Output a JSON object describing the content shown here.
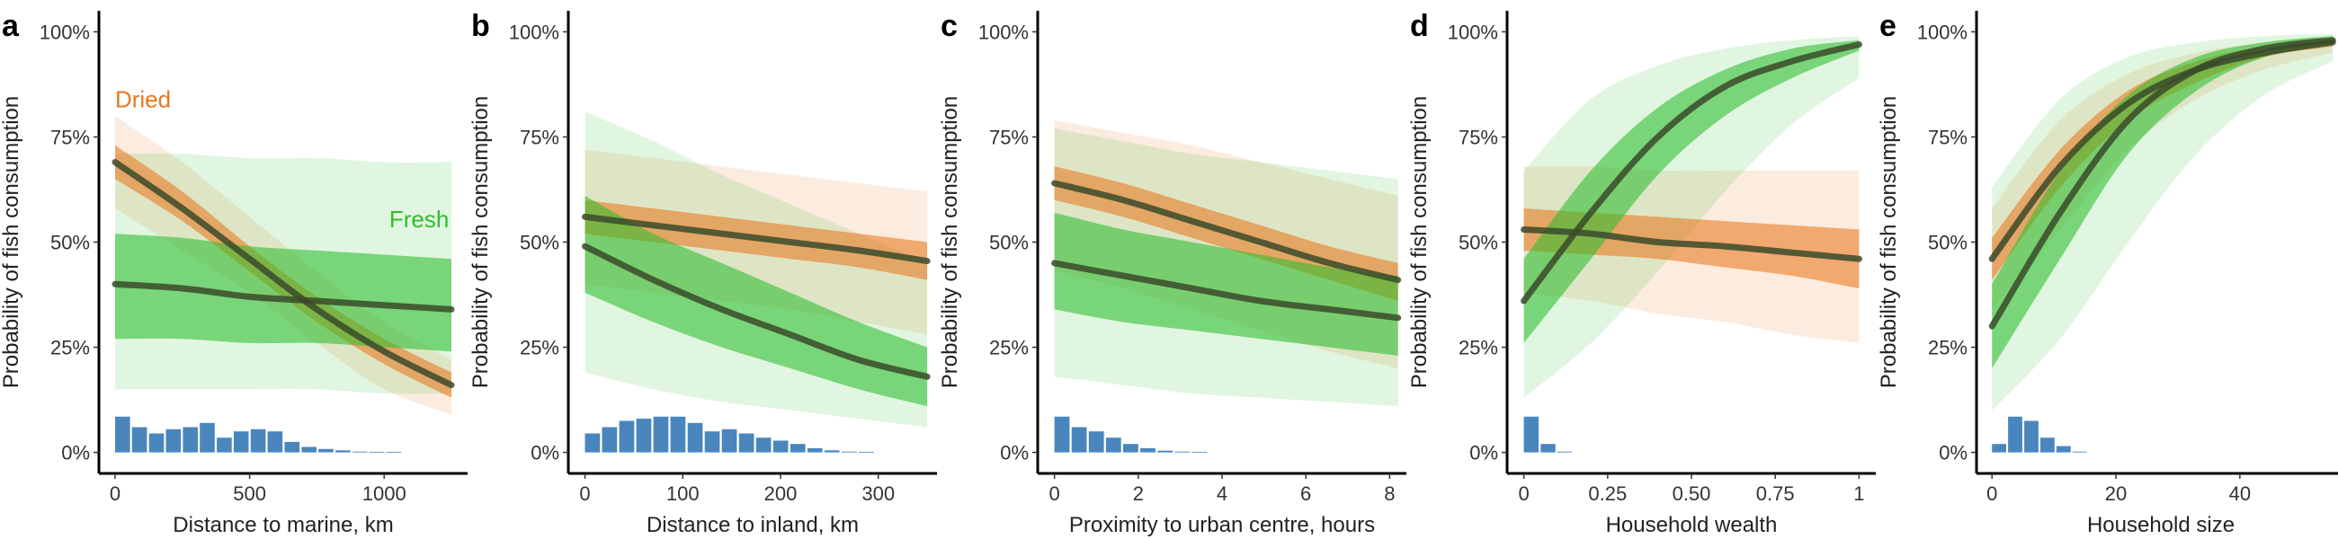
{
  "figure": {
    "colors": {
      "dried": "#E8781E",
      "fresh": "#2EBE2E",
      "curve": "#3a4a2a",
      "histogram": "#4A86BE"
    },
    "y_tick_labels": [
      "0%",
      "25%",
      "50%",
      "75%",
      "100%"
    ]
  },
  "chart_data": [
    {
      "type": "line",
      "panel": "a",
      "xlabel": "Distance to marine, km",
      "ylabel": "Probability of fish consumption",
      "xlim": [
        -60,
        1310
      ],
      "ylim": [
        -0.05,
        1.05
      ],
      "xticks": [
        0,
        500,
        1000
      ],
      "xtick_labels": [
        "0",
        "500",
        "1000"
      ],
      "annotations": [
        {
          "text": "Dried",
          "series": "dried",
          "x": 0,
          "y": 0.82
        },
        {
          "text": "Fresh",
          "series": "fresh",
          "x": 1130,
          "y": 0.535
        }
      ],
      "histogram": {
        "bin_width": 63,
        "start": 0,
        "values": [
          0.085,
          0.06,
          0.045,
          0.055,
          0.06,
          0.07,
          0.035,
          0.05,
          0.055,
          0.05,
          0.025,
          0.013,
          0.008,
          0.005,
          0.002,
          0.001,
          0.001,
          0.0,
          0.0,
          0.0
        ]
      },
      "series": [
        {
          "name": "Dried",
          "x": [
            0,
            250,
            500,
            750,
            1000,
            1250
          ],
          "y": [
            0.69,
            0.58,
            0.46,
            0.34,
            0.24,
            0.16
          ],
          "ci_lower": [
            0.65,
            0.55,
            0.43,
            0.31,
            0.21,
            0.13
          ],
          "ci_upper": [
            0.73,
            0.62,
            0.49,
            0.37,
            0.27,
            0.19
          ],
          "pi_lower": [
            0.58,
            0.48,
            0.38,
            0.26,
            0.15,
            0.09
          ],
          "pi_upper": [
            0.8,
            0.69,
            0.56,
            0.43,
            0.31,
            0.22
          ]
        },
        {
          "name": "Fresh",
          "x": [
            0,
            250,
            500,
            750,
            1000,
            1250
          ],
          "y": [
            0.4,
            0.39,
            0.37,
            0.36,
            0.35,
            0.34
          ],
          "ci_lower": [
            0.27,
            0.27,
            0.26,
            0.26,
            0.25,
            0.24
          ],
          "ci_upper": [
            0.52,
            0.51,
            0.49,
            0.48,
            0.47,
            0.46
          ],
          "pi_lower": [
            0.15,
            0.15,
            0.15,
            0.15,
            0.14,
            0.14
          ],
          "pi_upper": [
            0.71,
            0.71,
            0.7,
            0.7,
            0.69,
            0.69
          ]
        }
      ]
    },
    {
      "type": "line",
      "panel": "b",
      "xlabel": "Distance to inland, km",
      "ylabel": "Probability of fish consumption",
      "xlim": [
        -17,
        360
      ],
      "ylim": [
        -0.05,
        1.05
      ],
      "xticks": [
        0,
        100,
        200,
        300
      ],
      "xtick_labels": [
        "0",
        "100",
        "200",
        "300"
      ],
      "annotations": [],
      "histogram": {
        "bin_width": 17.5,
        "start": 0,
        "values": [
          0.045,
          0.06,
          0.075,
          0.08,
          0.085,
          0.085,
          0.07,
          0.05,
          0.055,
          0.045,
          0.035,
          0.028,
          0.02,
          0.01,
          0.005,
          0.002,
          0.001,
          0.0,
          0.0,
          0.0
        ]
      },
      "series": [
        {
          "name": "Dried",
          "x": [
            0,
            70,
            140,
            210,
            280,
            350
          ],
          "y": [
            0.56,
            0.54,
            0.52,
            0.5,
            0.48,
            0.455
          ],
          "ci_lower": [
            0.52,
            0.5,
            0.48,
            0.46,
            0.44,
            0.41
          ],
          "ci_upper": [
            0.6,
            0.58,
            0.56,
            0.54,
            0.52,
            0.5
          ],
          "pi_lower": [
            0.4,
            0.38,
            0.36,
            0.34,
            0.31,
            0.28
          ],
          "pi_upper": [
            0.72,
            0.7,
            0.68,
            0.66,
            0.64,
            0.62
          ]
        },
        {
          "name": "Fresh",
          "x": [
            0,
            70,
            140,
            210,
            280,
            350
          ],
          "y": [
            0.49,
            0.41,
            0.34,
            0.28,
            0.22,
            0.18
          ],
          "ci_lower": [
            0.38,
            0.31,
            0.25,
            0.2,
            0.15,
            0.11
          ],
          "ci_upper": [
            0.61,
            0.52,
            0.45,
            0.38,
            0.31,
            0.25
          ],
          "pi_lower": [
            0.19,
            0.15,
            0.12,
            0.1,
            0.08,
            0.06
          ],
          "pi_upper": [
            0.81,
            0.74,
            0.66,
            0.59,
            0.52,
            0.45
          ]
        }
      ]
    },
    {
      "type": "line",
      "panel": "c",
      "xlabel": "Proximity to urban centre, hours",
      "ylabel": "Probability of fish consumption",
      "xlim": [
        -0.4,
        8.4
      ],
      "ylim": [
        -0.05,
        1.05
      ],
      "xticks": [
        0,
        2,
        4,
        6,
        8
      ],
      "xtick_labels": [
        "0",
        "2",
        "4",
        "6",
        "8"
      ],
      "annotations": [],
      "histogram": {
        "bin_width": 0.41,
        "start": 0,
        "values": [
          0.085,
          0.06,
          0.05,
          0.035,
          0.02,
          0.01,
          0.004,
          0.002,
          0.001,
          0.0
        ]
      },
      "series": [
        {
          "name": "Dried",
          "x": [
            0,
            1.64,
            3.28,
            4.92,
            6.56,
            8.2
          ],
          "y": [
            0.64,
            0.6,
            0.55,
            0.5,
            0.45,
            0.41
          ],
          "ci_lower": [
            0.6,
            0.56,
            0.51,
            0.46,
            0.41,
            0.36
          ],
          "ci_upper": [
            0.68,
            0.64,
            0.59,
            0.54,
            0.49,
            0.45
          ],
          "pi_lower": [
            0.43,
            0.39,
            0.34,
            0.29,
            0.24,
            0.2
          ],
          "pi_upper": [
            0.79,
            0.76,
            0.73,
            0.69,
            0.65,
            0.61
          ]
        },
        {
          "name": "Fresh",
          "x": [
            0,
            1.64,
            3.28,
            4.92,
            6.56,
            8.2
          ],
          "y": [
            0.45,
            0.42,
            0.39,
            0.36,
            0.34,
            0.32
          ],
          "ci_lower": [
            0.34,
            0.31,
            0.29,
            0.27,
            0.25,
            0.23
          ],
          "ci_upper": [
            0.57,
            0.53,
            0.5,
            0.47,
            0.44,
            0.42
          ],
          "pi_lower": [
            0.18,
            0.16,
            0.14,
            0.13,
            0.12,
            0.11
          ],
          "pi_upper": [
            0.77,
            0.74,
            0.71,
            0.69,
            0.67,
            0.65
          ]
        }
      ]
    },
    {
      "type": "line",
      "panel": "d",
      "xlabel": "Household wealth",
      "ylabel": "Probability of fish consumption",
      "xlim": [
        -0.05,
        1.05
      ],
      "ylim": [
        -0.05,
        1.05
      ],
      "xticks": [
        0,
        0.25,
        0.5,
        0.75,
        1
      ],
      "xtick_labels": [
        "0",
        "0.25",
        "0.50",
        "0.75",
        "1"
      ],
      "annotations": [],
      "histogram": {
        "bin_width": 0.05,
        "start": 0,
        "values": [
          0.085,
          0.02,
          0.002,
          0.0
        ]
      },
      "series": [
        {
          "name": "Dried",
          "x": [
            0,
            0.2,
            0.4,
            0.6,
            0.8,
            1.0
          ],
          "y": [
            0.53,
            0.52,
            0.5,
            0.49,
            0.475,
            0.46
          ],
          "ci_lower": [
            0.48,
            0.47,
            0.46,
            0.44,
            0.42,
            0.39
          ],
          "ci_upper": [
            0.58,
            0.57,
            0.56,
            0.55,
            0.54,
            0.53
          ],
          "pi_lower": [
            0.38,
            0.36,
            0.33,
            0.31,
            0.28,
            0.26
          ],
          "pi_upper": [
            0.68,
            0.68,
            0.67,
            0.67,
            0.67,
            0.67
          ]
        },
        {
          "name": "Fresh",
          "x": [
            0,
            0.2,
            0.4,
            0.6,
            0.8,
            1.0
          ],
          "y": [
            0.36,
            0.57,
            0.75,
            0.87,
            0.93,
            0.97
          ],
          "ci_lower": [
            0.26,
            0.46,
            0.66,
            0.8,
            0.89,
            0.955
          ],
          "ci_upper": [
            0.46,
            0.67,
            0.82,
            0.91,
            0.96,
            0.98
          ],
          "pi_lower": [
            0.13,
            0.26,
            0.43,
            0.62,
            0.78,
            0.89
          ],
          "pi_upper": [
            0.67,
            0.84,
            0.92,
            0.96,
            0.98,
            0.99
          ]
        }
      ]
    },
    {
      "type": "line",
      "panel": "e",
      "xlabel": "Household size",
      "ylabel": "Probability of fish consumption",
      "xlim": [
        -2.5,
        57
      ],
      "ylim": [
        -0.05,
        1.05
      ],
      "xticks": [
        0,
        20,
        40
      ],
      "xtick_labels": [
        "0",
        "20",
        "40"
      ],
      "annotations": [],
      "histogram": {
        "bin_width": 2.6,
        "start": 0,
        "values": [
          0.02,
          0.085,
          0.075,
          0.035,
          0.015,
          0.002,
          0.0
        ]
      },
      "series": [
        {
          "name": "Dried",
          "x": [
            0,
            11,
            22,
            33,
            44,
            55
          ],
          "y": [
            0.46,
            0.68,
            0.83,
            0.91,
            0.95,
            0.975
          ],
          "ci_lower": [
            0.41,
            0.63,
            0.79,
            0.88,
            0.94,
            0.965
          ],
          "ci_upper": [
            0.51,
            0.72,
            0.86,
            0.93,
            0.965,
            0.98
          ],
          "pi_lower": [
            0.34,
            0.53,
            0.72,
            0.84,
            0.91,
            0.95
          ],
          "pi_upper": [
            0.58,
            0.79,
            0.9,
            0.95,
            0.975,
            0.99
          ]
        },
        {
          "name": "Fresh",
          "x": [
            0,
            11,
            22,
            33,
            44,
            55
          ],
          "y": [
            0.3,
            0.57,
            0.79,
            0.91,
            0.96,
            0.98
          ],
          "ci_lower": [
            0.2,
            0.46,
            0.71,
            0.86,
            0.94,
            0.97
          ],
          "ci_upper": [
            0.4,
            0.67,
            0.85,
            0.94,
            0.975,
            0.99
          ],
          "pi_lower": [
            0.1,
            0.27,
            0.5,
            0.71,
            0.85,
            0.93
          ],
          "pi_upper": [
            0.63,
            0.84,
            0.94,
            0.975,
            0.99,
            0.995
          ]
        }
      ]
    }
  ]
}
